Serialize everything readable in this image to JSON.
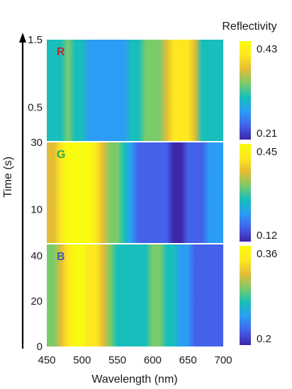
{
  "chart_data": {
    "type": "heatmap",
    "xlabel": "Wavelength (nm)",
    "ylabel": "Time (s)",
    "colorbar_title": "Reflectivity",
    "x_ticks": [
      450,
      500,
      550,
      600,
      650,
      700
    ],
    "xlim": [
      450,
      700
    ],
    "colormap": [
      "#3e26a8",
      "#4361e9",
      "#2c9cf5",
      "#17bebb",
      "#7bcb6b",
      "#e3bc35",
      "#fde81f",
      "#f9fb0e"
    ],
    "wavelengths": [
      450,
      460,
      470,
      480,
      490,
      500,
      510,
      520,
      530,
      540,
      550,
      560,
      570,
      580,
      590,
      600,
      610,
      620,
      630,
      640,
      650,
      660,
      670,
      680,
      690,
      700
    ],
    "panels": [
      {
        "letter": "R",
        "letter_color": "#c0272d",
        "y_ticks": [
          {
            "value": 0.5,
            "label": "0.5"
          },
          {
            "value": 1.5,
            "label": "1.5"
          }
        ],
        "ylim": [
          0,
          1.5
        ],
        "colorbar_min": "0.21",
        "colorbar_max": "0.43",
        "profile": [
          0.36,
          0.38,
          0.45,
          0.5,
          0.48,
          0.38,
          0.35,
          0.32,
          0.3,
          0.25,
          0.24,
          0.3,
          0.42,
          0.48,
          0.52,
          0.54,
          0.62,
          0.72,
          0.86,
          0.92,
          0.87,
          0.7,
          0.45,
          0.42,
          0.4,
          0.4
        ]
      },
      {
        "letter": "G",
        "letter_color": "#2aa84a",
        "y_ticks": [
          {
            "value": 10,
            "label": "10"
          },
          {
            "value": 30,
            "label": "30"
          }
        ],
        "ylim": [
          0,
          30
        ],
        "colorbar_min": "0.12",
        "colorbar_max": "0.45",
        "profile": [
          0.66,
          0.72,
          0.86,
          0.96,
          0.98,
          0.97,
          0.94,
          0.86,
          0.72,
          0.64,
          0.52,
          0.4,
          0.3,
          0.2,
          0.14,
          0.12,
          0.1,
          0.08,
          0.07,
          0.07,
          0.08,
          0.1,
          0.15,
          0.22,
          0.3,
          0.34
        ]
      },
      {
        "letter": "B",
        "letter_color": "#3a62a8",
        "y_ticks": [
          {
            "value": 0,
            "label": "0"
          },
          {
            "value": 20,
            "label": "20"
          },
          {
            "value": 40,
            "label": "40"
          }
        ],
        "ylim": [
          0,
          45
        ],
        "colorbar_min": "0.2",
        "colorbar_max": "0.36",
        "profile": [
          0.56,
          0.62,
          0.76,
          0.88,
          0.94,
          0.95,
          0.9,
          0.8,
          0.66,
          0.56,
          0.48,
          0.44,
          0.44,
          0.46,
          0.48,
          0.5,
          0.5,
          0.48,
          0.44,
          0.34,
          0.24,
          0.16,
          0.12,
          0.1,
          0.1,
          0.1
        ]
      }
    ]
  }
}
